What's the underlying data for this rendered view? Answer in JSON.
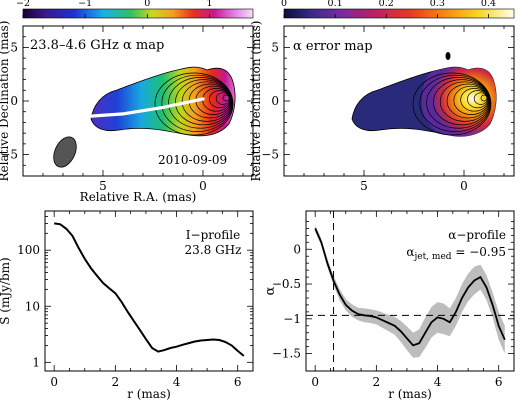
{
  "chart_data": [
    {
      "type": "heatmap",
      "panel": "spectral-index-map",
      "label": "23.8–4.6 GHz α map",
      "date": "2010-09-09",
      "xlabel": "Relative R.A. (mas)",
      "ylabel": "Relative Declination (mas)",
      "xlim": [
        9,
        -2.5
      ],
      "ylim": [
        -7,
        7
      ],
      "xticks": [
        5,
        0
      ],
      "yticks": [
        5,
        0,
        -5
      ],
      "colorbar": {
        "range": [
          -2,
          1.7
        ],
        "ticks": [
          -2,
          -1,
          0,
          1
        ]
      },
      "ridge_line": {
        "x": [
          6.3,
          4,
          2,
          0
        ],
        "y": [
          -1.5,
          -1.2,
          -0.6,
          0.2
        ]
      }
    },
    {
      "type": "heatmap",
      "panel": "alpha-error-map",
      "label": "α error map",
      "xlabel": "",
      "ylabel": "Relative Declination (mas)",
      "xlim": [
        9,
        -2.5
      ],
      "ylim": [
        -7,
        7
      ],
      "xticks": [
        5,
        0
      ],
      "yticks": [
        5,
        0,
        -5
      ],
      "colorbar": {
        "range": [
          0,
          0.45
        ],
        "ticks": [
          0,
          0.1,
          0.2,
          0.3,
          0.4
        ]
      }
    },
    {
      "type": "line",
      "panel": "intensity-profile",
      "label": [
        "I−profile",
        "23.8 GHz"
      ],
      "xlabel": "r (mas)",
      "ylabel": "S (mJy/bm)",
      "xlim": [
        -0.3,
        6.5
      ],
      "ylim": [
        0.7,
        500
      ],
      "yscale": "log",
      "xticks": [
        0,
        2,
        4,
        6
      ],
      "yticks": [
        1,
        10,
        100
      ],
      "series": [
        {
          "x": [
            0,
            0.2,
            0.4,
            0.6,
            0.8,
            1.0,
            1.2,
            1.4,
            1.6,
            1.8,
            2.0,
            2.2,
            2.4,
            2.6,
            2.8,
            3.0,
            3.2,
            3.4,
            3.6,
            3.8,
            4.0,
            4.2,
            4.4,
            4.6,
            4.8,
            5.0,
            5.2,
            5.4,
            5.6,
            5.8,
            6.0,
            6.2
          ],
          "y": [
            300,
            290,
            240,
            180,
            110,
            70,
            48,
            35,
            26,
            21,
            17,
            12,
            8,
            5.5,
            3.8,
            2.6,
            1.8,
            1.55,
            1.65,
            1.8,
            1.9,
            2.05,
            2.2,
            2.35,
            2.45,
            2.5,
            2.55,
            2.5,
            2.3,
            2.0,
            1.6,
            1.3
          ]
        }
      ]
    },
    {
      "type": "line",
      "panel": "alpha-profile",
      "label": "α−profile",
      "annotation": "αjet, med = −0.95",
      "xlabel": "r (mas)",
      "ylabel": "α",
      "xlim": [
        -0.3,
        6.5
      ],
      "ylim": [
        -1.75,
        0.55
      ],
      "xticks": [
        0,
        2,
        4,
        6
      ],
      "yticks": [
        0,
        -0.5,
        -1,
        -1.5
      ],
      "hline": -0.95,
      "vline": 0.6,
      "series": [
        {
          "x": [
            0,
            0.2,
            0.4,
            0.6,
            0.8,
            1.0,
            1.2,
            1.4,
            1.6,
            1.8,
            2.0,
            2.2,
            2.4,
            2.6,
            2.8,
            3.0,
            3.2,
            3.4,
            3.6,
            3.8,
            4.0,
            4.2,
            4.4,
            4.6,
            4.8,
            5.0,
            5.2,
            5.4,
            5.6,
            5.8,
            6.0,
            6.2
          ],
          "y": [
            0.3,
            0.1,
            -0.2,
            -0.45,
            -0.65,
            -0.8,
            -0.88,
            -0.93,
            -0.95,
            -0.96,
            -0.98,
            -1.02,
            -1.06,
            -1.1,
            -1.18,
            -1.28,
            -1.38,
            -1.35,
            -1.2,
            -1.05,
            -0.98,
            -1.0,
            -1.05,
            -0.9,
            -0.7,
            -0.55,
            -0.45,
            -0.4,
            -0.55,
            -0.8,
            -1.1,
            -1.3
          ],
          "err": [
            0.05,
            0.05,
            0.06,
            0.07,
            0.08,
            0.08,
            0.09,
            0.09,
            0.1,
            0.1,
            0.1,
            0.11,
            0.12,
            0.13,
            0.15,
            0.17,
            0.18,
            0.2,
            0.22,
            0.22,
            0.22,
            0.22,
            0.2,
            0.2,
            0.2,
            0.2,
            0.2,
            0.18,
            0.18,
            0.18,
            0.2,
            0.2
          ]
        }
      ]
    }
  ]
}
